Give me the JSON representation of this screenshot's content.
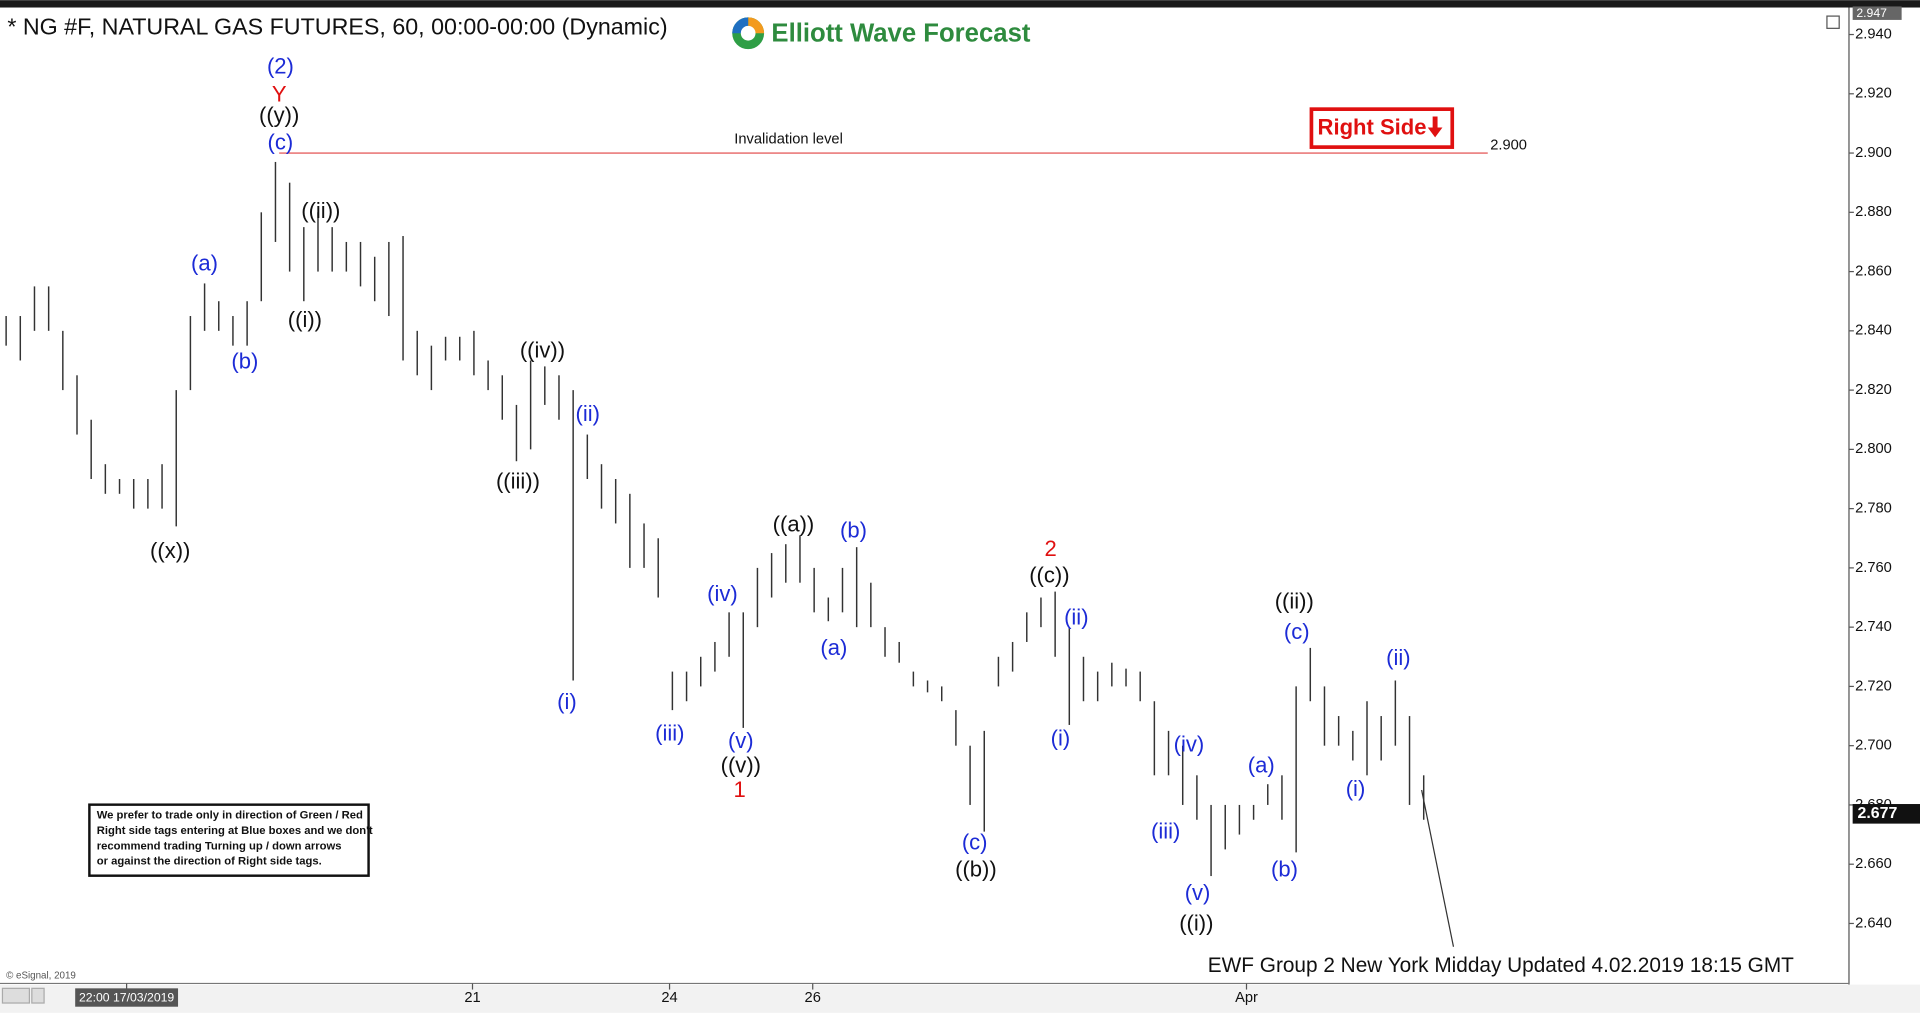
{
  "chart_data": {
    "type": "hl-bar",
    "title": "* NG #F, NATURAL GAS FUTURES, 60, 00:00-00:00 (Dynamic)",
    "logo_text": "Elliott Wave Forecast",
    "bar_color": "#333333",
    "xlim": [
      0,
      130
    ],
    "ylim": [
      2.621,
      2.948
    ],
    "yticks": [
      {
        "value": 2.64,
        "label": "2.640"
      },
      {
        "value": 2.66,
        "label": "2.660"
      },
      {
        "value": 2.68,
        "label": "2.680"
      },
      {
        "value": 2.7,
        "label": "2.700"
      },
      {
        "value": 2.72,
        "label": "2.720"
      },
      {
        "value": 2.74,
        "label": "2.740"
      },
      {
        "value": 2.76,
        "label": "2.760"
      },
      {
        "value": 2.78,
        "label": "2.780"
      },
      {
        "value": 2.8,
        "label": "2.800"
      },
      {
        "value": 2.82,
        "label": "2.820"
      },
      {
        "value": 2.84,
        "label": "2.840"
      },
      {
        "value": 2.86,
        "label": "2.860"
      },
      {
        "value": 2.88,
        "label": "2.880"
      },
      {
        "value": 2.9,
        "label": "2.900"
      },
      {
        "value": 2.92,
        "label": "2.920"
      },
      {
        "value": 2.94,
        "label": "2.940"
      }
    ],
    "xticks": [
      {
        "value": 8.5,
        "label": "22:00 17/03/2019"
      },
      {
        "value": 32.9,
        "label": "21"
      },
      {
        "value": 46.8,
        "label": "24"
      },
      {
        "value": 56.9,
        "label": "26"
      },
      {
        "value": 87.5,
        "label": "Apr"
      }
    ],
    "high": [
      2.845,
      2.845,
      2.855,
      2.855,
      2.84,
      2.825,
      2.81,
      2.795,
      2.79,
      2.79,
      2.79,
      2.795,
      2.82,
      2.845,
      2.856,
      2.85,
      2.845,
      2.85,
      2.88,
      2.897,
      2.89,
      2.875,
      2.88,
      2.875,
      2.87,
      2.87,
      2.865,
      2.87,
      2.872,
      2.84,
      2.835,
      2.838,
      2.838,
      2.84,
      2.83,
      2.825,
      2.815,
      2.83,
      2.828,
      2.825,
      2.82,
      2.805,
      2.795,
      2.79,
      2.785,
      2.775,
      2.77,
      2.725,
      2.725,
      2.73,
      2.735,
      2.745,
      2.745,
      2.76,
      2.765,
      2.768,
      2.771,
      2.76,
      2.75,
      2.76,
      2.767,
      2.755,
      2.74,
      2.735,
      2.725,
      2.722,
      2.72,
      2.712,
      2.7,
      2.705,
      2.73,
      2.735,
      2.745,
      2.75,
      2.752,
      2.74,
      2.73,
      2.725,
      2.728,
      2.726,
      2.725,
      2.715,
      2.705,
      2.7,
      2.69,
      2.68,
      2.68,
      2.68,
      2.68,
      2.687,
      2.69,
      2.72,
      2.733,
      2.72,
      2.71,
      2.705,
      2.715,
      2.71,
      2.722,
      2.71,
      2.69
    ],
    "low": [
      2.835,
      2.83,
      2.84,
      2.84,
      2.82,
      2.805,
      2.79,
      2.785,
      2.785,
      2.78,
      2.78,
      2.78,
      2.774,
      2.82,
      2.84,
      2.84,
      2.835,
      2.835,
      2.85,
      2.87,
      2.86,
      2.85,
      2.86,
      2.86,
      2.86,
      2.855,
      2.85,
      2.845,
      2.83,
      2.825,
      2.82,
      2.83,
      2.83,
      2.825,
      2.82,
      2.81,
      2.796,
      2.8,
      2.815,
      2.81,
      2.722,
      2.79,
      2.78,
      2.775,
      2.76,
      2.76,
      2.75,
      2.712,
      2.715,
      2.72,
      2.725,
      2.73,
      2.706,
      2.74,
      2.75,
      2.755,
      2.755,
      2.745,
      2.742,
      2.745,
      2.74,
      2.74,
      2.73,
      2.728,
      2.72,
      2.718,
      2.715,
      2.7,
      2.68,
      2.671,
      2.72,
      2.725,
      2.735,
      2.74,
      2.73,
      2.707,
      2.715,
      2.715,
      2.72,
      2.72,
      2.715,
      2.69,
      2.69,
      2.68,
      2.675,
      2.656,
      2.665,
      2.67,
      2.675,
      2.68,
      2.675,
      2.664,
      2.715,
      2.7,
      2.7,
      2.695,
      2.69,
      2.695,
      2.7,
      2.68,
      2.675
    ],
    "invalidation": {
      "text": "Invalidation level",
      "value": 2.9,
      "label": "2.900"
    },
    "right_side_tag": "Right Side",
    "axis_top_tag": {
      "value": 2.947,
      "label": "2.947"
    },
    "last_price": {
      "value": 2.677,
      "label": "2.677"
    },
    "wave_labels": [
      {
        "text": "(2)",
        "color": "#1c2bd6"
      },
      {
        "text": "Y",
        "color": "#e01010"
      },
      {
        "text": "((y))",
        "color": "#111111"
      },
      {
        "text": "(c)",
        "color": "#1c2bd6"
      },
      {
        "text": "((ii))",
        "color": "#111111"
      },
      {
        "text": "(a)",
        "color": "#1c2bd6"
      },
      {
        "text": "(b)",
        "color": "#1c2bd6"
      },
      {
        "text": "((i))",
        "color": "#111111"
      },
      {
        "text": "((x))",
        "color": "#111111"
      },
      {
        "text": "((iv))",
        "color": "#111111"
      },
      {
        "text": "((iii))",
        "color": "#111111"
      },
      {
        "text": "(ii)",
        "color": "#1c2bd6"
      },
      {
        "text": "(i)",
        "color": "#1c2bd6"
      },
      {
        "text": "(iii)",
        "color": "#1c2bd6"
      },
      {
        "text": "(iv)",
        "color": "#1c2bd6"
      },
      {
        "text": "(v)",
        "color": "#1c2bd6"
      },
      {
        "text": "((v))",
        "color": "#111111"
      },
      {
        "text": "1",
        "color": "#e01010"
      },
      {
        "text": "((a))",
        "color": "#111111"
      },
      {
        "text": "(b)",
        "color": "#1c2bd6"
      },
      {
        "text": "(a)",
        "color": "#1c2bd6"
      },
      {
        "text": "(c)",
        "color": "#1c2bd6"
      },
      {
        "text": "((b))",
        "color": "#111111"
      },
      {
        "text": "2",
        "color": "#e01010"
      },
      {
        "text": "((c))",
        "color": "#111111"
      },
      {
        "text": "(ii)",
        "color": "#1c2bd6"
      },
      {
        "text": "(i)",
        "color": "#1c2bd6"
      },
      {
        "text": "(iv)",
        "color": "#1c2bd6"
      },
      {
        "text": "(iii)",
        "color": "#1c2bd6"
      },
      {
        "text": "(v)",
        "color": "#1c2bd6"
      },
      {
        "text": "((i))",
        "color": "#111111"
      },
      {
        "text": "(a)",
        "color": "#1c2bd6"
      },
      {
        "text": "(b)",
        "color": "#1c2bd6"
      },
      {
        "text": "((ii))",
        "color": "#111111"
      },
      {
        "text": "(c)",
        "color": "#1c2bd6"
      },
      {
        "text": "(i)",
        "color": "#1c2bd6"
      },
      {
        "text": "(ii)",
        "color": "#1c2bd6"
      }
    ],
    "note_lines": [
      "We prefer to trade only in direction of Green / Red",
      "Right side tags entering at Blue boxes and we don't",
      "recommend trading Turning up / down arrows",
      "or against the direction of Right side tags."
    ],
    "footer": "EWF Group 2 New York Midday Updated 4.02.2019 18:15 GMT",
    "copyright": "© eSignal, 2019"
  }
}
